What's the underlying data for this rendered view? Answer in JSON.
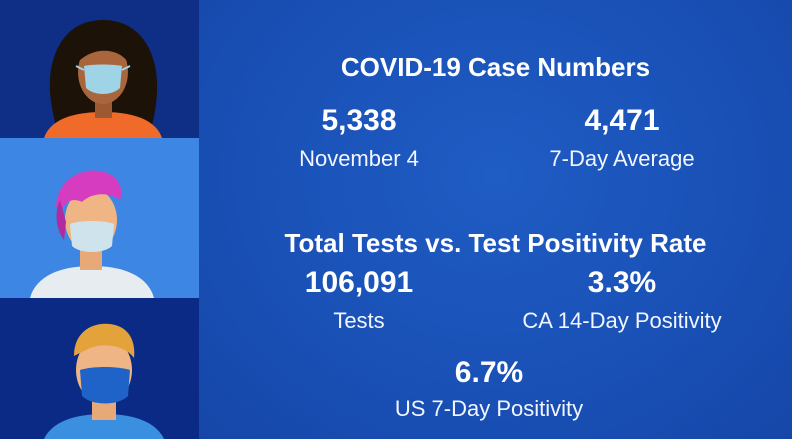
{
  "colors": {
    "background": "#1a4fb3",
    "panel_top": "#0f2f87",
    "panel_middle": "#3d86e3",
    "panel_bottom": "#0b2a86",
    "text": "#ffffff"
  },
  "illustrations": [
    {
      "name": "woman-with-mask-illustration"
    },
    {
      "name": "person-pink-hair-mask-illustration"
    },
    {
      "name": "man-blue-mask-illustration"
    }
  ],
  "case_numbers": {
    "title": "COVID-19 Case Numbers",
    "daily": {
      "value": "5,338",
      "label": "November 4"
    },
    "average": {
      "value": "4,471",
      "label": "7-Day Average"
    }
  },
  "testing": {
    "title": "Total Tests vs. Test Positivity Rate",
    "tests": {
      "value": "106,091",
      "label": "Tests"
    },
    "ca_positivity": {
      "value": "3.3%",
      "label": "CA 14-Day Positivity"
    },
    "us_positivity": {
      "value": "6.7%",
      "label": "US 7-Day Positivity"
    }
  }
}
